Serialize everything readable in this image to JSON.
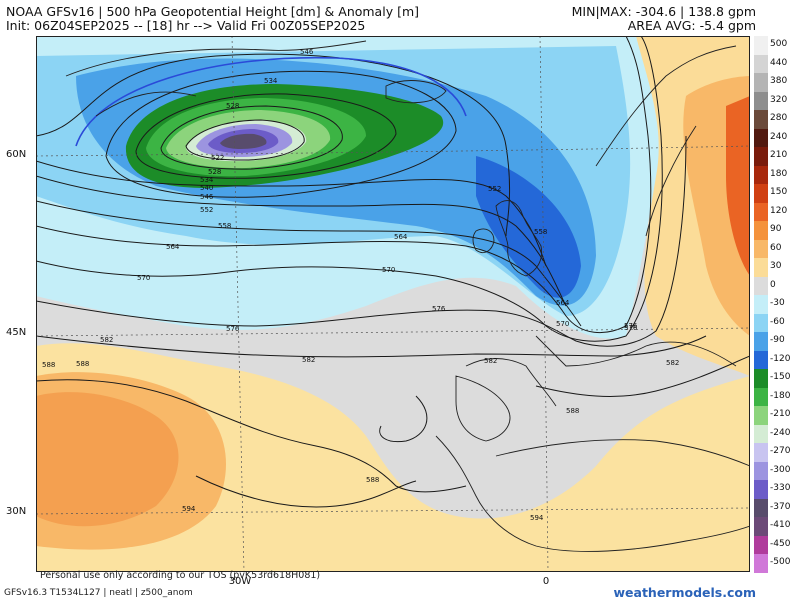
{
  "header": {
    "title": "NOAA GFSv16 | 500 hPa Geopotential Height [dm] & Anomaly [m]",
    "init": "Init: 06Z04SEP2025 -- [18] hr --> Valid Fri 00Z05SEP2025",
    "minmax": "MIN|MAX: -304.6 | 138.8 gpm",
    "area_avg": "AREA AVG: -5.4 gpm"
  },
  "axes": {
    "lat_labels": [
      "60N",
      "45N",
      "30N"
    ],
    "lon_labels": [
      "30W",
      "0"
    ]
  },
  "contour_labels": [
    "546",
    "534",
    "528",
    "522",
    "528",
    "534",
    "540",
    "546",
    "552",
    "558",
    "564",
    "564",
    "570",
    "570",
    "576",
    "576",
    "576",
    "582",
    "582",
    "582",
    "582",
    "588",
    "588",
    "552",
    "558",
    "564",
    "570",
    "576",
    "588",
    "594",
    "594",
    "588"
  ],
  "colorbar": {
    "values": [
      "500",
      "440",
      "380",
      "320",
      "280",
      "240",
      "210",
      "180",
      "150",
      "120",
      "90",
      "60",
      "30",
      "0",
      "-30",
      "-60",
      "-90",
      "-120",
      "-150",
      "-180",
      "-210",
      "-240",
      "-270",
      "-300",
      "-330",
      "-370",
      "-410",
      "-450",
      "-500"
    ],
    "colors": [
      "#f0f0f0",
      "#d4d4d4",
      "#b4b4b4",
      "#8e8e8e",
      "#6b4a3a",
      "#521a10",
      "#7a1c0c",
      "#a8280c",
      "#d04012",
      "#ea6424",
      "#f4923c",
      "#f8b868",
      "#fbdc98",
      "#dcdcdc",
      "#c4eef8",
      "#8cd4f4",
      "#4aa2e8",
      "#2468d8",
      "#1c8c28",
      "#3cb444",
      "#8cd47c",
      "#d4ecd4",
      "#c8c4f0",
      "#9c94e0",
      "#6c5cc8",
      "#584c6c",
      "#6c4a78",
      "#b03c9c",
      "#d078d8"
    ]
  },
  "footer": {
    "tos": "Personal use only according to our TOS (pvK53rd618H081)",
    "model": "GFSv16.3 T1534L127 | neatl | z500_anom",
    "brand": "weathermodels.com"
  }
}
